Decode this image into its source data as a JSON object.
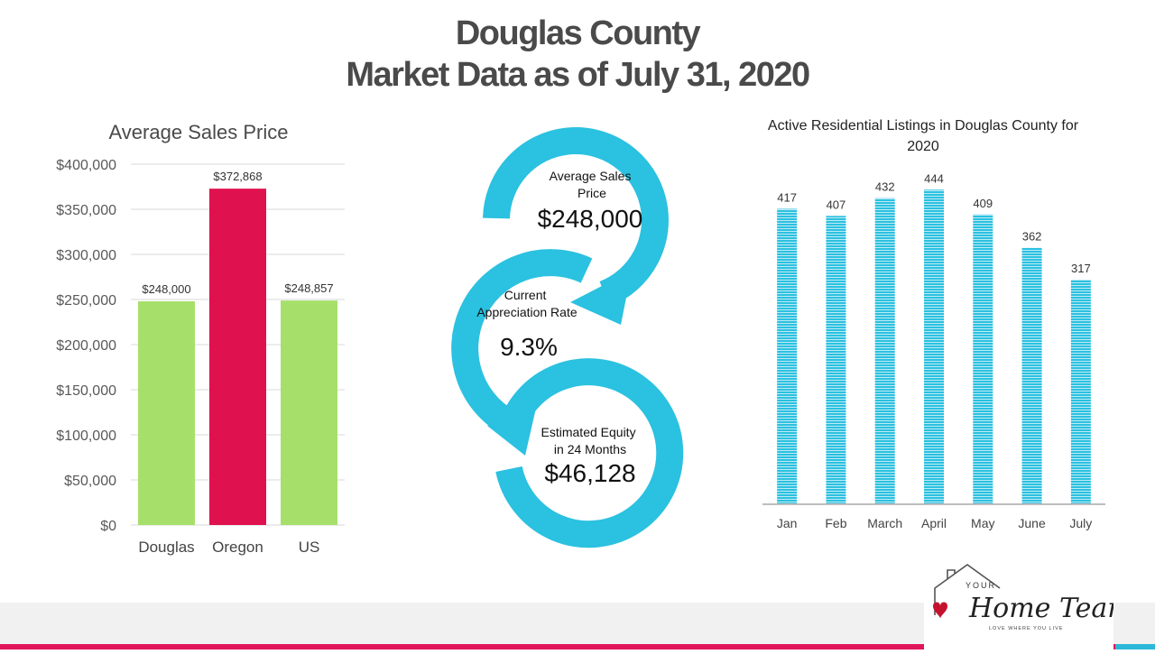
{
  "page": {
    "title_line1": "Douglas County",
    "title_line2": "Market Data  as of July 31, 2020"
  },
  "colors": {
    "green": "#a6e06b",
    "pink": "#e0114f",
    "cyan": "#2bc1e0",
    "text": "#4a4a4a"
  },
  "chart_data": [
    {
      "type": "bar",
      "title": "Average Sales Price",
      "categories": [
        "Douglas",
        "Oregon",
        "US"
      ],
      "values": [
        248000,
        372868,
        248857
      ],
      "value_labels": [
        "$248,000",
        "$372,868",
        "$248,857"
      ],
      "bar_colors": [
        "#a6e06b",
        "#e0114f",
        "#a6e06b"
      ],
      "ylim": [
        0,
        400000
      ],
      "ytick_labels": [
        "$0",
        "$50,000",
        "$100,000",
        "$150,000",
        "$200,000",
        "$250,000",
        "$300,000",
        "$350,000",
        "$400,000"
      ],
      "grid": true
    },
    {
      "type": "bar",
      "title": "Active Residential  Listings in Douglas County for 2020",
      "title_line1": "Active Residential  Listings in Douglas County for",
      "title_line2": "2020",
      "categories": [
        "Jan",
        "Feb",
        "March",
        "April",
        "May",
        "June",
        "July"
      ],
      "values": [
        417,
        407,
        432,
        444,
        409,
        362,
        317
      ],
      "value_labels": [
        "417",
        "407",
        "432",
        "444",
        "409",
        "362",
        "317"
      ],
      "bar_color": "#2bc1e0",
      "bar_pattern": "horizontal-stripes",
      "ylim": [
        0,
        480
      ],
      "grid": false
    }
  ],
  "infographic": {
    "steps": [
      {
        "label_lines": [
          "Average Sales",
          "Price"
        ],
        "value": "$248,000"
      },
      {
        "label_lines": [
          "Current",
          "Appreciation Rate"
        ],
        "value": "9.3%"
      },
      {
        "label_lines": [
          "Estimated Equity",
          "in 24 Months"
        ],
        "value": "$46,128"
      }
    ]
  },
  "logo": {
    "line1": "YOUR",
    "line2": "Home Team",
    "tagline": "LOVE WHERE YOU LIVE"
  }
}
